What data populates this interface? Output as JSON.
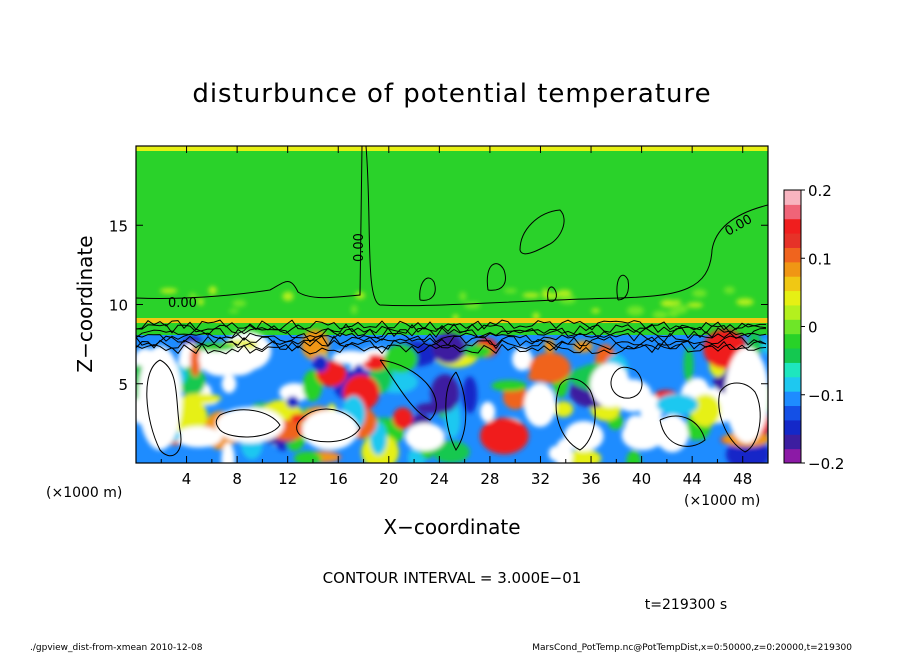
{
  "chart_data": {
    "type": "heatmap",
    "title": "disturbunce of potential temperature",
    "xlabel": "X−coordinate",
    "ylabel": "Z−coordinate",
    "x_unit_left": "(×1000 m)",
    "x_unit_right": "(×1000 m)",
    "xlim": [
      0,
      50
    ],
    "ylim": [
      0,
      20
    ],
    "xticks": [
      4,
      8,
      12,
      16,
      20,
      24,
      28,
      32,
      36,
      40,
      44,
      48
    ],
    "yticks": [
      5,
      10,
      15
    ],
    "colorbar": {
      "range": [
        -0.2,
        0.2
      ],
      "labels": [
        {
          "value": 0.2,
          "text": "0.2"
        },
        {
          "value": 0.1,
          "text": "0.1"
        },
        {
          "value": 0,
          "text": "0"
        },
        {
          "value": -0.1,
          "text": "−0.1"
        },
        {
          "value": -0.2,
          "text": "−0.2"
        }
      ],
      "colors": [
        "#8c1aa6",
        "#3c1ea0",
        "#1428c8",
        "#1450e6",
        "#1e8cff",
        "#1ec8f0",
        "#1ee6be",
        "#14c850",
        "#28d228",
        "#6ee628",
        "#b4f01e",
        "#e6f014",
        "#f0c814",
        "#f09614",
        "#f0641e",
        "#e63228",
        "#f01e1e",
        "#f06478",
        "#f8b4c0"
      ]
    },
    "contour_labels": [
      "0.00",
      "0.00",
      "0.00"
    ],
    "contour_interval": "CONTOUR INTERVAL = 3.000E−01",
    "time": "t=219300 s"
  },
  "footer": {
    "left": "./gpview_dist-from-xmean  2010-12-08",
    "right": "MarsCond_PotTemp.nc@PotTempDist,x=0:50000,z=0:20000,t=219300"
  }
}
